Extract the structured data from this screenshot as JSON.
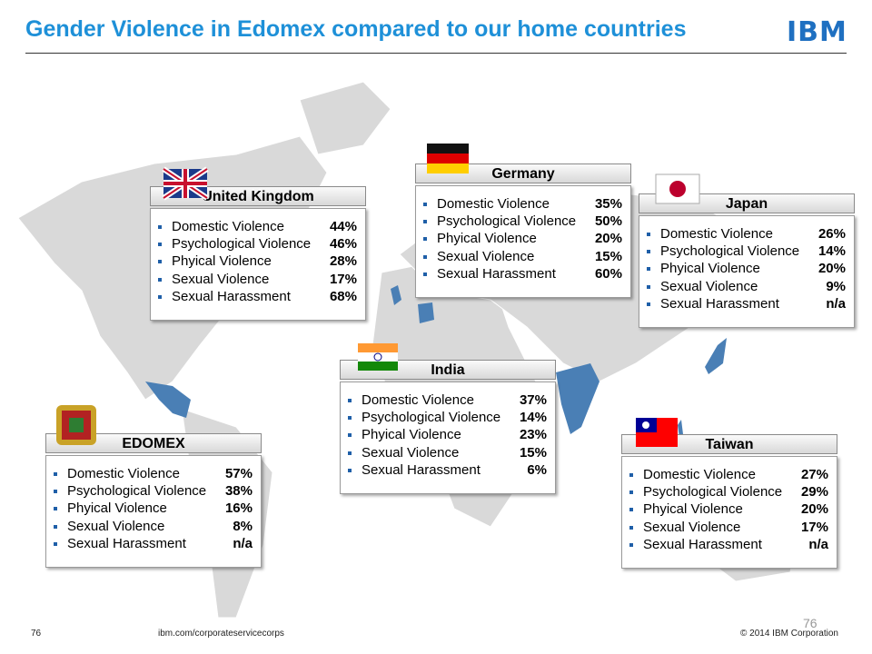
{
  "header": {
    "title": "Gender Violence in Edomex compared to our home countries",
    "logo": "IBM"
  },
  "panels": [
    {
      "name": "United Kingdom",
      "items": [
        {
          "label": "Domestic Violence",
          "value": "44%"
        },
        {
          "label": "Psychological Violence",
          "value": "46%"
        },
        {
          "label": "Phyical Violence",
          "value": "28%"
        },
        {
          "label": "Sexual Violence",
          "value": "17%"
        },
        {
          "label": "Sexual Harassment",
          "value": "68%"
        }
      ]
    },
    {
      "name": "Germany",
      "items": [
        {
          "label": "Domestic Violence",
          "value": "35%"
        },
        {
          "label": "Psychological Violence",
          "value": "50%"
        },
        {
          "label": "Phyical Violence",
          "value": "20%"
        },
        {
          "label": "Sexual Violence",
          "value": "15%"
        },
        {
          "label": "Sexual Harassment",
          "value": "60%"
        }
      ]
    },
    {
      "name": "Japan",
      "items": [
        {
          "label": "Domestic Violence",
          "value": "26%"
        },
        {
          "label": "Psychological Violence",
          "value": "14%"
        },
        {
          "label": "Phyical Violence",
          "value": "20%"
        },
        {
          "label": "Sexual Violence",
          "value": "9%"
        },
        {
          "label": "Sexual Harassment",
          "value": "n/a"
        }
      ]
    },
    {
      "name": "India",
      "items": [
        {
          "label": "Domestic Violence",
          "value": "37%"
        },
        {
          "label": "Psychological Violence",
          "value": "14%"
        },
        {
          "label": "Phyical Violence",
          "value": "23%"
        },
        {
          "label": "Sexual Violence",
          "value": "15%"
        },
        {
          "label": "Sexual Harassment",
          "value": "6%"
        }
      ]
    },
    {
      "name": "EDOMEX",
      "items": [
        {
          "label": "Domestic Violence",
          "value": "57%"
        },
        {
          "label": "Psychological Violence",
          "value": "38%"
        },
        {
          "label": "Phyical Violence",
          "value": "16%"
        },
        {
          "label": "Sexual Violence",
          "value": "8%"
        },
        {
          "label": "Sexual Harassment",
          "value": "n/a"
        }
      ]
    },
    {
      "name": "Taiwan",
      "items": [
        {
          "label": "Domestic Violence",
          "value": "27%"
        },
        {
          "label": "Psychological Violence",
          "value": "29%"
        },
        {
          "label": "Phyical Violence",
          "value": "20%"
        },
        {
          "label": "Sexual Violence",
          "value": "17%"
        },
        {
          "label": "Sexual Harassment",
          "value": "n/a"
        }
      ]
    }
  ],
  "footer": {
    "page": "76",
    "url": "ibm.com/corporateservicecorps",
    "copyright": "© 2014 IBM  Corporation",
    "slide_number": "76"
  }
}
